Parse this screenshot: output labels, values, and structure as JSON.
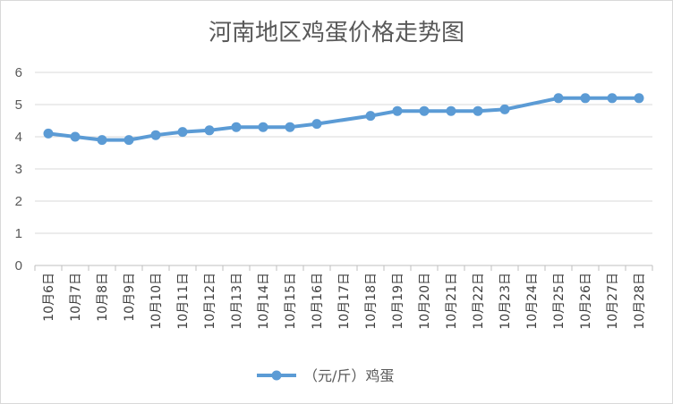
{
  "chart_data": {
    "type": "line",
    "title": "河南地区鸡蛋价格走势图",
    "xlabel": "",
    "ylabel": "",
    "ylim": [
      0,
      6
    ],
    "yticks": [
      "0",
      "1",
      "2",
      "3",
      "4",
      "5",
      "6"
    ],
    "grid": true,
    "legend_position": "bottom",
    "categories": [
      "10月6日",
      "10月7日",
      "10月8日",
      "10月9日",
      "10月10日",
      "10月11日",
      "10月12日",
      "10月13日",
      "10月14日",
      "10月15日",
      "10月16日",
      "10月17日",
      "10月18日",
      "10月19日",
      "10月20日",
      "10月21日",
      "10月22日",
      "10月23日",
      "10月24日",
      "10月25日",
      "10月26日",
      "10月27日",
      "10月28日"
    ],
    "series": [
      {
        "name": "（元/斤）鸡蛋",
        "color": "#5b9bd5",
        "values": [
          4.1,
          4.0,
          3.9,
          3.9,
          4.05,
          4.15,
          4.2,
          4.3,
          4.3,
          4.3,
          4.4,
          null,
          4.65,
          4.8,
          4.8,
          4.8,
          4.8,
          4.85,
          null,
          5.2,
          5.2,
          5.2,
          5.2
        ]
      }
    ]
  }
}
